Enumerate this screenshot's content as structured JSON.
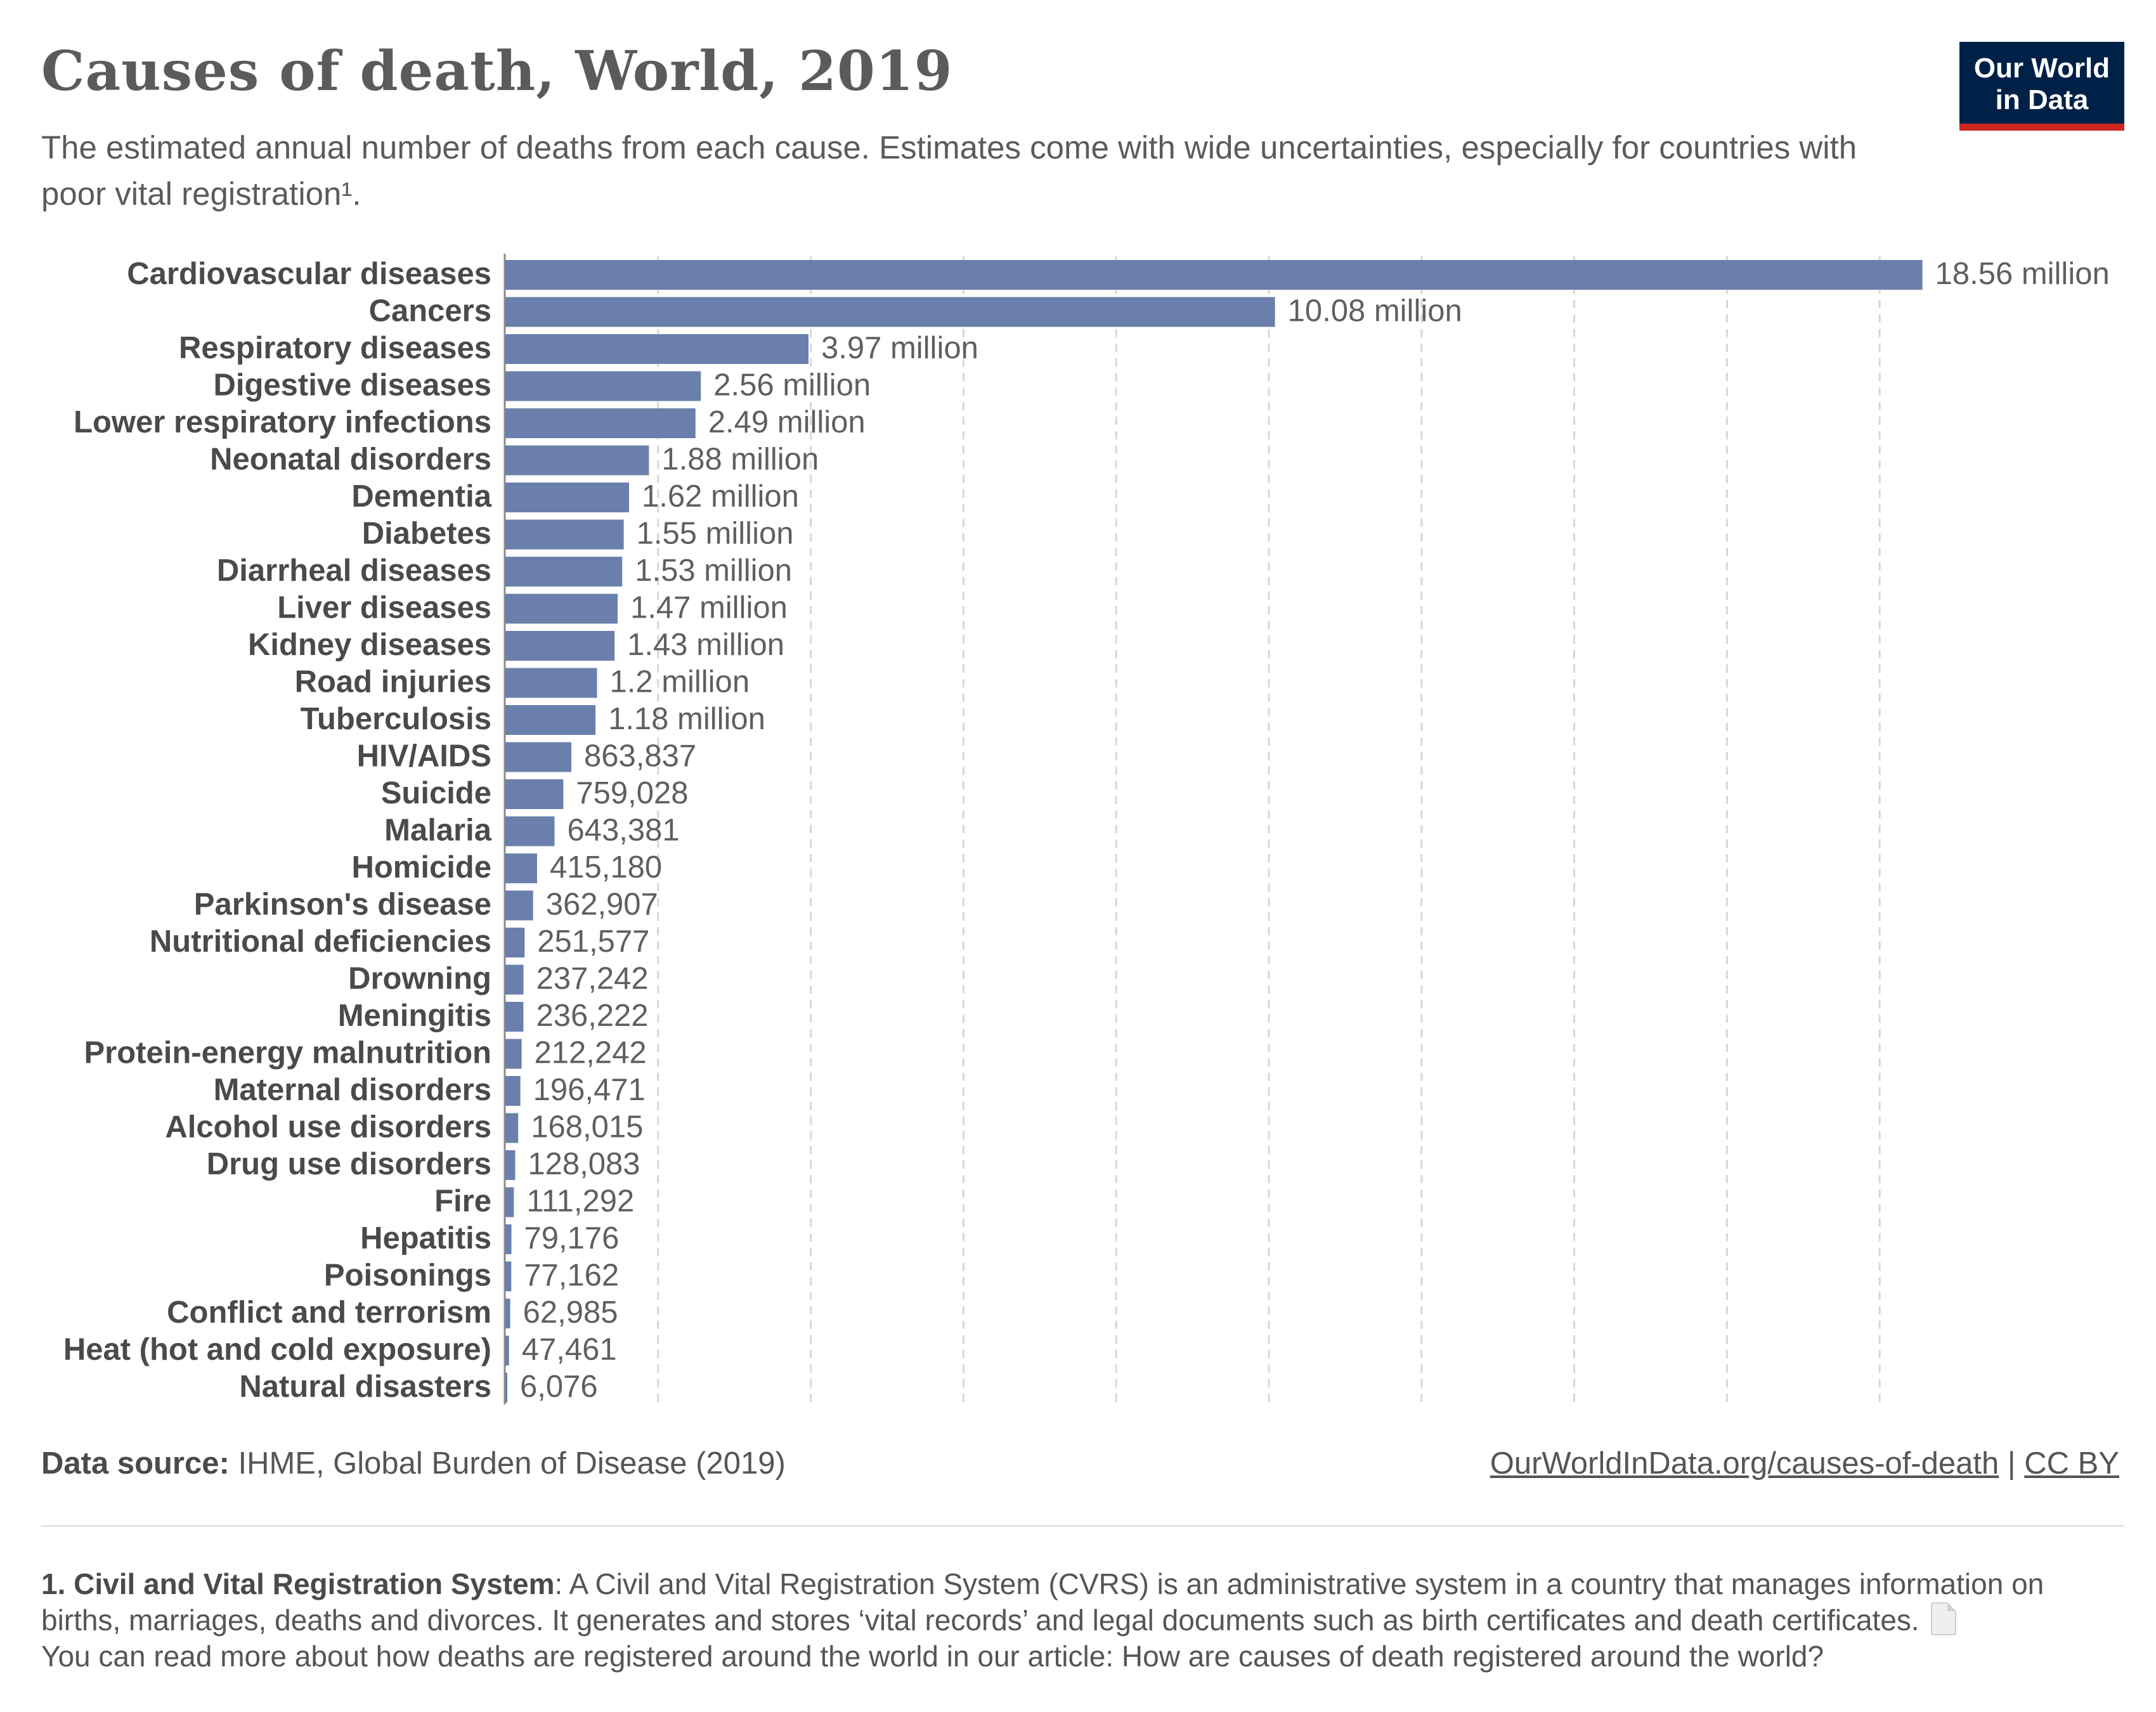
{
  "header": {
    "title": "Causes of death, World, 2019",
    "subtitle": "The estimated annual number of deaths from each cause. Estimates come with wide uncertainties, especially for countries with poor vital registration¹.",
    "logo_line1": "Our World",
    "logo_line2": "in Data"
  },
  "chart_data": {
    "type": "bar",
    "orientation": "horizontal",
    "grid": true,
    "unit": "deaths",
    "categories": [
      "Cardiovascular diseases",
      "Cancers",
      "Respiratory diseases",
      "Digestive diseases",
      "Lower respiratory infections",
      "Neonatal disorders",
      "Dementia",
      "Diabetes",
      "Diarrheal diseases",
      "Liver diseases",
      "Kidney diseases",
      "Road injuries",
      "Tuberculosis",
      "HIV/AIDS",
      "Suicide",
      "Malaria",
      "Homicide",
      "Parkinson's disease",
      "Nutritional deficiencies",
      "Drowning",
      "Meningitis",
      "Protein-energy malnutrition",
      "Maternal disorders",
      "Alcohol use disorders",
      "Drug use disorders",
      "Fire",
      "Hepatitis",
      "Poisonings",
      "Conflict and terrorism",
      "Heat (hot and cold exposure)",
      "Natural disasters"
    ],
    "values": [
      18560000,
      10080000,
      3970000,
      2560000,
      2490000,
      1880000,
      1620000,
      1550000,
      1530000,
      1470000,
      1430000,
      1200000,
      1180000,
      863837,
      759028,
      643381,
      415180,
      362907,
      251577,
      237242,
      236222,
      212242,
      196471,
      168015,
      128083,
      111292,
      79176,
      77162,
      62985,
      47461,
      6076
    ],
    "labels": [
      "18.56 million",
      "10.08 million",
      "3.97 million",
      "2.56 million",
      "2.49 million",
      "1.88 million",
      "1.62 million",
      "1.55 million",
      "1.53 million",
      "1.47 million",
      "1.43 million",
      "1.2 million",
      "1.18 million",
      "863,837",
      "759,028",
      "643,381",
      "415,180",
      "362,907",
      "251,577",
      "237,242",
      "236,222",
      "212,242",
      "196,471",
      "168,015",
      "128,083",
      "111,292",
      "79,176",
      "77,162",
      "62,985",
      "47,461",
      "6,076"
    ],
    "xlim": [
      0,
      20000000
    ],
    "xticks": [
      2000000,
      4000000,
      6000000,
      8000000,
      10000000,
      12000000,
      14000000,
      16000000,
      18000000
    ],
    "bar_color": "#6a7fab"
  },
  "footer": {
    "source_label": "Data source:",
    "source_text": "IHME, Global Burden of Disease (2019)",
    "url": "OurWorldInData.org/causes-of-death",
    "separator": "|",
    "license": "CC BY"
  },
  "footnote": {
    "term": "1. Civil and Vital Registration System",
    "text": ": A Civil and Vital Registration System (CVRS) is an administrative system in a country that manages information on births, marriages, deaths and divorces. It generates and stores ‘vital records’ and legal documents such as birth certificates and death certificates.",
    "more": "You can read more about how deaths are registered around the world in our article: How are causes of death registered around the world?"
  }
}
